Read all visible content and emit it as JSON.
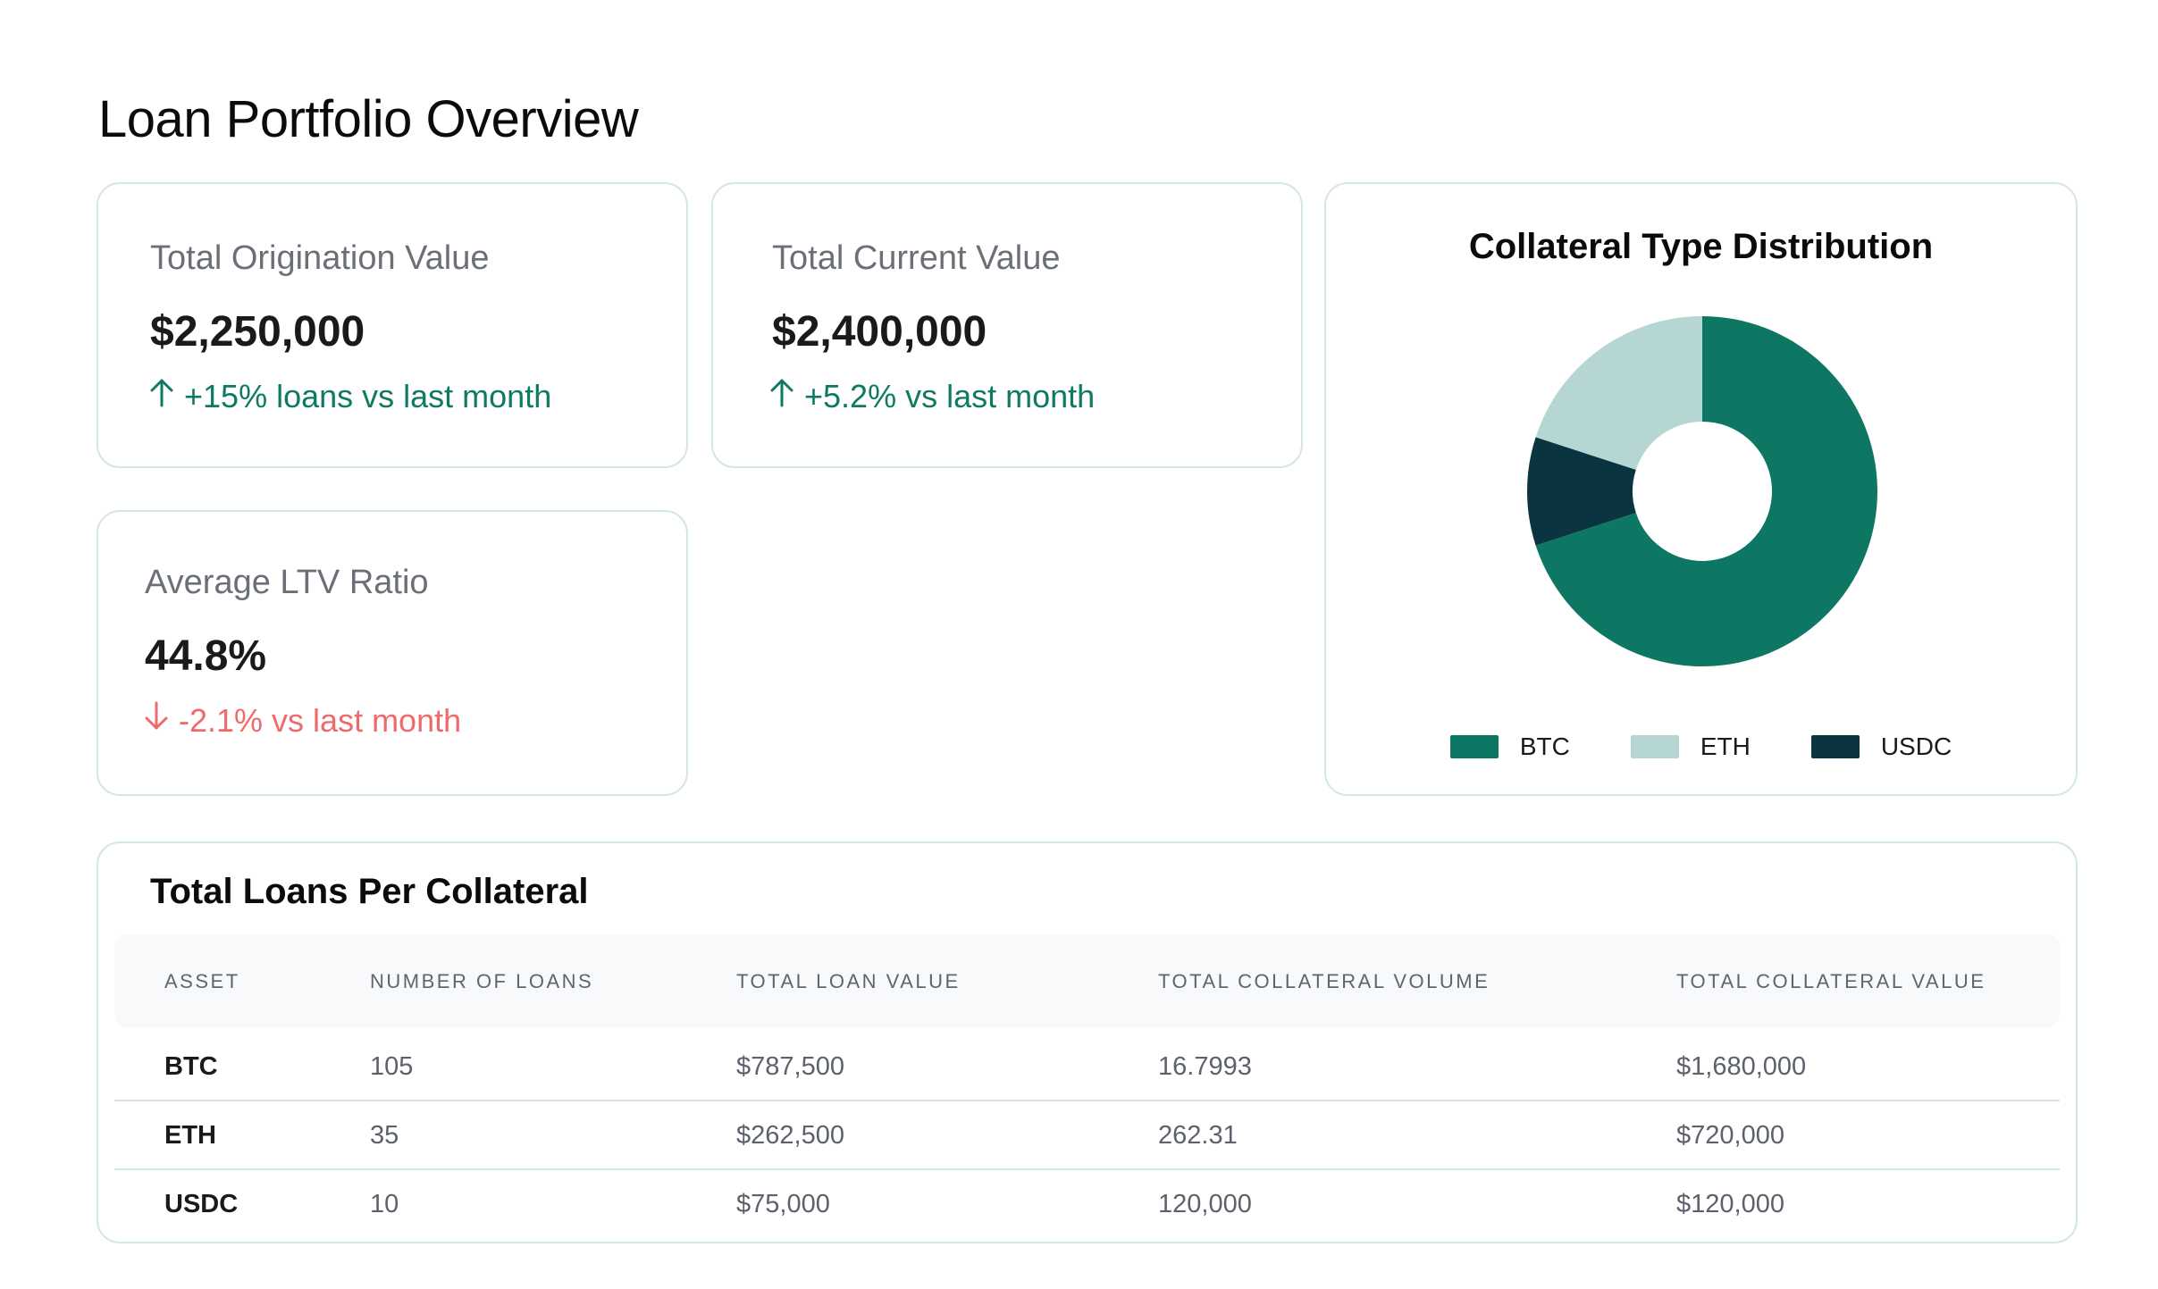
{
  "page": {
    "title": "Loan Portfolio Overview"
  },
  "stats": {
    "origination": {
      "label": "Total Origination Value",
      "value": "$2,250,000",
      "change": "+15% loans vs last month",
      "direction": "up"
    },
    "current": {
      "label": "Total Current Value",
      "value": "$2,400,000",
      "change": "+5.2% vs last month",
      "direction": "up"
    },
    "ltv": {
      "label": "Average LTV Ratio",
      "value": "44.8%",
      "change": "-2.1% vs last month",
      "direction": "down"
    }
  },
  "colors": {
    "positive": "#0f7a63",
    "negative": "#ef6b6b",
    "btc": "#0e7764",
    "eth": "#b6d6d4",
    "usdc": "#0a3540"
  },
  "chart_data": {
    "type": "pie",
    "title": "Collateral Type Distribution",
    "donut": true,
    "categories": [
      "BTC",
      "ETH",
      "USDC"
    ],
    "values": [
      70,
      20,
      10
    ],
    "colors": [
      "#0e7764",
      "#b6d6d4",
      "#0a3540"
    ],
    "legend_position": "bottom"
  },
  "table": {
    "title": "Total Loans Per Collateral",
    "columns": [
      "ASSET",
      "NUMBER OF LOANS",
      "TOTAL LOAN VALUE",
      "TOTAL COLLATERAL VOLUME",
      "TOTAL COLLATERAL VALUE"
    ],
    "rows": [
      [
        "BTC",
        "105",
        "$787,500",
        "16.7993",
        "$1,680,000"
      ],
      [
        "ETH",
        "35",
        "$262,500",
        "262.31",
        "$720,000"
      ],
      [
        "USDC",
        "10",
        "$75,000",
        "120,000",
        "$120,000"
      ]
    ]
  }
}
